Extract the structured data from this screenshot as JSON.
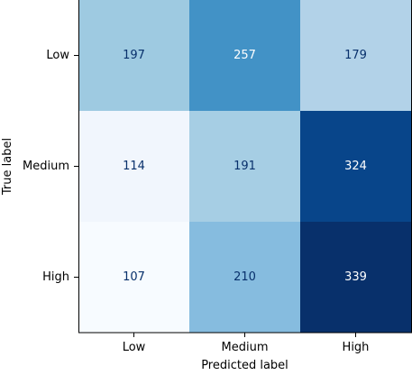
{
  "chart_data": {
    "type": "heatmap",
    "title": "",
    "xlabel": "Predicted label",
    "ylabel": "True label",
    "x_categories": [
      "Low",
      "Medium",
      "High"
    ],
    "y_categories": [
      "Low",
      "Medium",
      "High"
    ],
    "values": [
      [
        197,
        257,
        179
      ],
      [
        114,
        191,
        324
      ],
      [
        107,
        210,
        339
      ]
    ],
    "colormap": "Blues",
    "vmin": 107,
    "vmax": 339,
    "colors": {
      "cells": [
        [
          "#9ecae1",
          "#4292c6",
          "#b2d2e8"
        ],
        [
          "#f1f6fd",
          "#a6cee4",
          "#08458a"
        ],
        [
          "#f7fbff",
          "#86bcdf",
          "#08306b"
        ]
      ],
      "text_dark": "#08306b",
      "text_light": "#ffffff",
      "axis": "#000000",
      "background": "#ffffff"
    },
    "grid": false,
    "colorbar": false
  }
}
